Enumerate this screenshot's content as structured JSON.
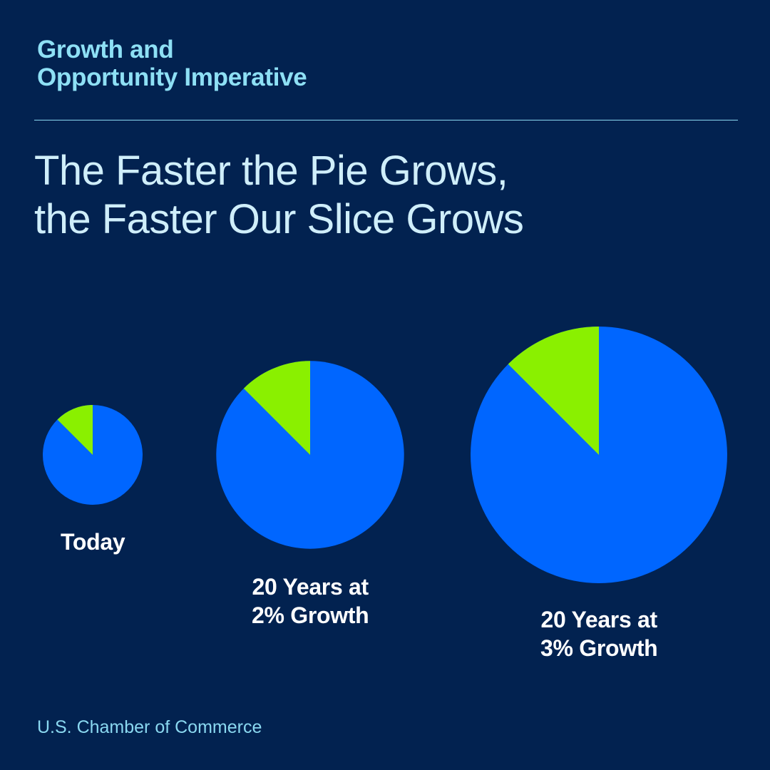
{
  "header": {
    "kicker_line1": "Growth and",
    "kicker_line2": "Opportunity Imperative",
    "headline_line1": "The Faster the Pie Grows,",
    "headline_line2": "the Faster Our Slice Grows"
  },
  "footer": {
    "source": "U.S. Chamber of Commerce"
  },
  "colors": {
    "background": "#022250",
    "pie": "#0066ff",
    "slice": "#8af000",
    "kicker": "#8ee0f5",
    "headline": "#cfeefa",
    "label": "#ffffff"
  },
  "chart_data": {
    "type": "pie",
    "title": "The Faster the Pie Grows, the Faster Our Slice Grows",
    "series": [
      {
        "name": "Today",
        "label_lines": [
          "Today"
        ],
        "relative_size": 1.0,
        "slice_share": 0.125
      },
      {
        "name": "20 Years at 2% Growth",
        "label_lines": [
          "20 Years at",
          "2% Growth"
        ],
        "relative_size": 3.54,
        "slice_share": 0.125
      },
      {
        "name": "20 Years at 3% Growth",
        "label_lines": [
          "20 Years at",
          "3% Growth"
        ],
        "relative_size": 6.61,
        "slice_share": 0.125
      }
    ],
    "legend": "none"
  }
}
